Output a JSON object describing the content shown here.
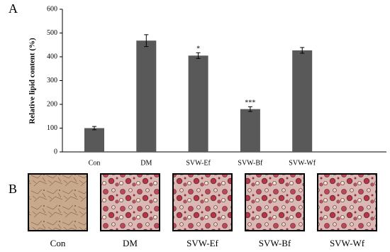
{
  "chart_data": {
    "type": "bar",
    "y_label": "Relative lipid content (%)",
    "categories": [
      "Con",
      "DM",
      "SVW-Ef",
      "SVW-Bf",
      "SVW-Wf"
    ],
    "values": [
      100,
      468,
      405,
      180,
      427
    ],
    "errors": [
      7,
      25,
      12,
      10,
      12
    ],
    "value_annotations": [
      null,
      null,
      "*",
      "***",
      null
    ],
    "color": "#595959",
    "ylim": [
      0,
      600
    ],
    "yticks": [
      0,
      100,
      200,
      300,
      400,
      500,
      600
    ]
  },
  "panel_labels": {
    "a": "A",
    "b": "B"
  },
  "micrographs": [
    "Con",
    "DM",
    "SVW-Ef",
    "SVW-Bf",
    "SVW-Wf"
  ]
}
